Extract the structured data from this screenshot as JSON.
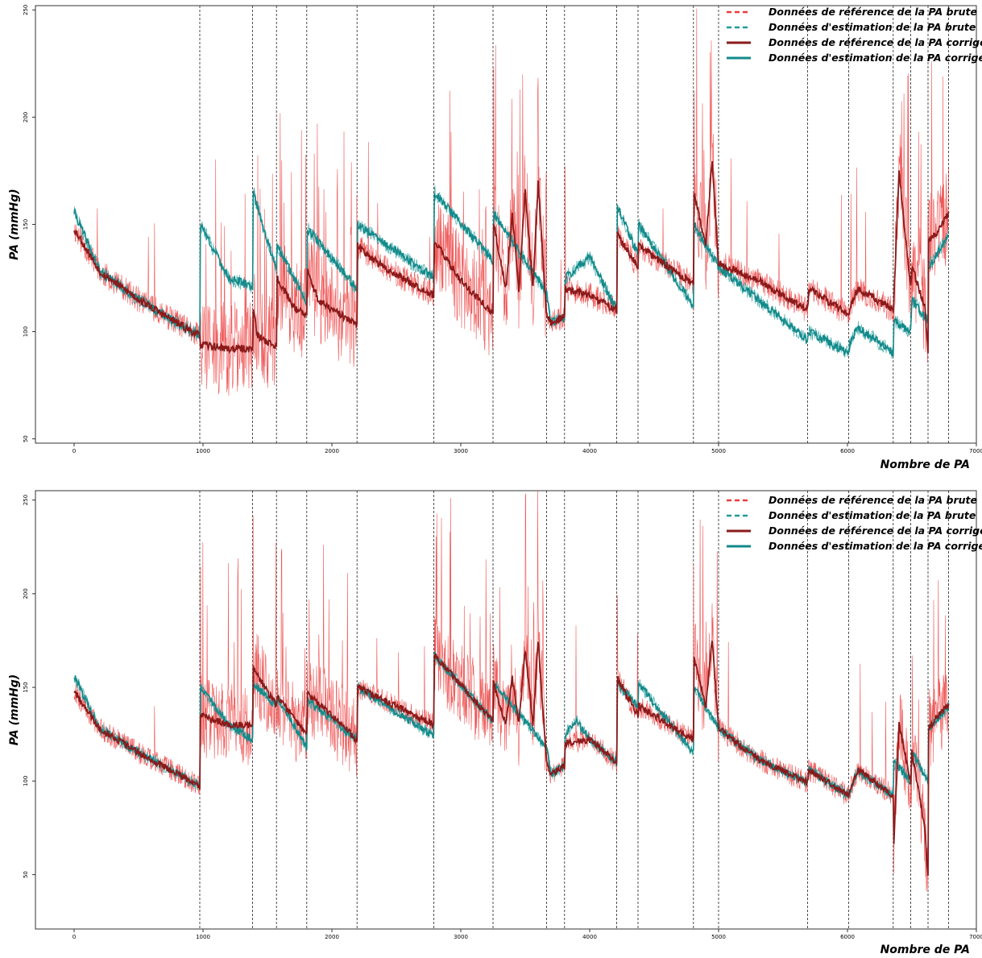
{
  "colors": {
    "ref_raw": "#ec3a3a",
    "est_raw": "#1f9a9a",
    "ref_corr": "#8b1a1a",
    "est_corr": "#138a8a"
  },
  "legend": {
    "ref_raw": "Données de référence de la PA brute",
    "est_raw": "Données d'estimation de la PA brute",
    "ref_corr": "Données de référence de la PA corrigé",
    "est_corr": "Données d'estimation de la PA corrigé"
  },
  "chart_data": [
    {
      "type": "line",
      "xlabel": "Nombre de PA",
      "ylabel": "PA (mmHg)",
      "xlim": [
        -300,
        7000
      ],
      "ylim": [
        48,
        252
      ],
      "x_ticks": [
        0,
        1000,
        2000,
        3000,
        4000,
        5000,
        6000,
        7000
      ],
      "y_ticks": [
        50,
        100,
        150,
        200,
        250
      ],
      "vlines": [
        975,
        1385,
        1570,
        1805,
        2195,
        2790,
        3250,
        3665,
        3805,
        4210,
        4375,
        4805,
        5000,
        5690,
        6010,
        6355,
        6490,
        6625,
        6785
      ],
      "legend_position": "top-right",
      "series": [
        {
          "key": "ref_corr",
          "points": [
            [
              0,
              148
            ],
            [
              200,
              128
            ],
            [
              500,
              115
            ],
            [
              800,
              104
            ],
            [
              975,
              98
            ],
            [
              980,
              94
            ],
            [
              1200,
              92
            ],
            [
              1385,
              92
            ],
            [
              1390,
              112
            ],
            [
              1420,
              98
            ],
            [
              1570,
              93
            ],
            [
              1575,
              125
            ],
            [
              1700,
              112
            ],
            [
              1805,
              107
            ],
            [
              1810,
              128
            ],
            [
              1900,
              114
            ],
            [
              2195,
              103
            ],
            [
              2200,
              140
            ],
            [
              2400,
              130
            ],
            [
              2790,
              117
            ],
            [
              2795,
              142
            ],
            [
              3000,
              124
            ],
            [
              3250,
              108
            ],
            [
              3255,
              150
            ],
            [
              3350,
              120
            ],
            [
              3400,
              155
            ],
            [
              3450,
              120
            ],
            [
              3500,
              165
            ],
            [
              3560,
              120
            ],
            [
              3600,
              170
            ],
            [
              3665,
              108
            ],
            [
              3700,
              104
            ],
            [
              3805,
              107
            ],
            [
              3810,
              120
            ],
            [
              4000,
              117
            ],
            [
              4210,
              110
            ],
            [
              4215,
              145
            ],
            [
              4375,
              130
            ],
            [
              4380,
              140
            ],
            [
              4805,
              122
            ],
            [
              4810,
              165
            ],
            [
              4900,
              140
            ],
            [
              4950,
              180
            ],
            [
              5000,
              132
            ],
            [
              5300,
              124
            ],
            [
              5690,
              110
            ],
            [
              5700,
              120
            ],
            [
              6010,
              108
            ],
            [
              6020,
              112
            ],
            [
              6080,
              120
            ],
            [
              6355,
              110
            ],
            [
              6360,
              115
            ],
            [
              6400,
              175
            ],
            [
              6490,
              120
            ],
            [
              6500,
              130
            ],
            [
              6600,
              112
            ],
            [
              6625,
              90
            ],
            [
              6630,
              142
            ],
            [
              6700,
              146
            ],
            [
              6785,
              155
            ]
          ]
        },
        {
          "key": "est_corr",
          "points": [
            [
              0,
              156
            ],
            [
              200,
              128
            ],
            [
              500,
              115
            ],
            [
              800,
              104
            ],
            [
              975,
              98
            ],
            [
              980,
              150
            ],
            [
              1200,
              125
            ],
            [
              1385,
              121
            ],
            [
              1390,
              165
            ],
            [
              1570,
              128
            ],
            [
              1575,
              140
            ],
            [
              1805,
              114
            ],
            [
              1810,
              148
            ],
            [
              2195,
              120
            ],
            [
              2200,
              150
            ],
            [
              2790,
              125
            ],
            [
              2795,
              165
            ],
            [
              3250,
              133
            ],
            [
              3255,
              155
            ],
            [
              3665,
              118
            ],
            [
              3700,
              104
            ],
            [
              3805,
              107
            ],
            [
              3810,
              125
            ],
            [
              3900,
              130
            ],
            [
              4000,
              135
            ],
            [
              4210,
              110
            ],
            [
              4215,
              158
            ],
            [
              4375,
              136
            ],
            [
              4380,
              150
            ],
            [
              4805,
              112
            ],
            [
              4810,
              150
            ],
            [
              5000,
              130
            ],
            [
              5690,
              96
            ],
            [
              5700,
              100
            ],
            [
              6010,
              90
            ],
            [
              6020,
              95
            ],
            [
              6080,
              102
            ],
            [
              6355,
              90
            ],
            [
              6360,
              105
            ],
            [
              6490,
              100
            ],
            [
              6500,
              115
            ],
            [
              6625,
              105
            ],
            [
              6630,
              130
            ],
            [
              6785,
              145
            ]
          ]
        }
      ]
    },
    {
      "type": "line",
      "xlabel": "Nombre de PA",
      "ylabel": "PA (mmHg)",
      "xlim": [
        -300,
        7000
      ],
      "ylim": [
        21,
        255
      ],
      "x_ticks": [
        0,
        1000,
        2000,
        3000,
        4000,
        5000,
        6000,
        7000
      ],
      "y_ticks": [
        50,
        100,
        150,
        200,
        250
      ],
      "vlines": [
        975,
        1385,
        1570,
        1805,
        2195,
        2790,
        3250,
        3665,
        3805,
        4210,
        4375,
        4805,
        5000,
        5690,
        6010,
        6355,
        6490,
        6625,
        6785
      ],
      "legend_position": "top-right",
      "series": [
        {
          "key": "ref_corr",
          "points": [
            [
              0,
              148
            ],
            [
              200,
              128
            ],
            [
              500,
              115
            ],
            [
              800,
              104
            ],
            [
              975,
              97
            ],
            [
              980,
              135
            ],
            [
              1200,
              130
            ],
            [
              1385,
              130
            ],
            [
              1390,
              160
            ],
            [
              1570,
              140
            ],
            [
              1575,
              145
            ],
            [
              1805,
              125
            ],
            [
              1810,
              147
            ],
            [
              2195,
              122
            ],
            [
              2200,
              150
            ],
            [
              2790,
              130
            ],
            [
              2795,
              167
            ],
            [
              3250,
              132
            ],
            [
              3255,
              152
            ],
            [
              3350,
              130
            ],
            [
              3400,
              155
            ],
            [
              3450,
              130
            ],
            [
              3500,
              170
            ],
            [
              3560,
              130
            ],
            [
              3600,
              175
            ],
            [
              3665,
              110
            ],
            [
              3700,
              104
            ],
            [
              3805,
              108
            ],
            [
              3810,
              120
            ],
            [
              4000,
              122
            ],
            [
              4210,
              110
            ],
            [
              4215,
              155
            ],
            [
              4375,
              135
            ],
            [
              4380,
              140
            ],
            [
              4805,
              122
            ],
            [
              4810,
              165
            ],
            [
              4900,
              140
            ],
            [
              4950,
              175
            ],
            [
              5000,
              128
            ],
            [
              5300,
              112
            ],
            [
              5690,
              99
            ],
            [
              5700,
              106
            ],
            [
              6010,
              92
            ],
            [
              6020,
              95
            ],
            [
              6080,
              106
            ],
            [
              6355,
              92
            ],
            [
              6360,
              68
            ],
            [
              6400,
              130
            ],
            [
              6490,
              100
            ],
            [
              6500,
              115
            ],
            [
              6600,
              75
            ],
            [
              6625,
              48
            ],
            [
              6630,
              128
            ],
            [
              6700,
              135
            ],
            [
              6785,
              140
            ]
          ]
        },
        {
          "key": "est_corr",
          "points": [
            [
              0,
              156
            ],
            [
              200,
              128
            ],
            [
              500,
              115
            ],
            [
              800,
              104
            ],
            [
              975,
              97
            ],
            [
              980,
              150
            ],
            [
              1200,
              130
            ],
            [
              1385,
              122
            ],
            [
              1390,
              152
            ],
            [
              1570,
              140
            ],
            [
              1575,
              145
            ],
            [
              1805,
              118
            ],
            [
              1810,
              143
            ],
            [
              2195,
              122
            ],
            [
              2200,
              150
            ],
            [
              2790,
              124
            ],
            [
              2795,
              167
            ],
            [
              3250,
              132
            ],
            [
              3255,
              152
            ],
            [
              3665,
              118
            ],
            [
              3700,
              104
            ],
            [
              3805,
              108
            ],
            [
              3810,
              125
            ],
            [
              3900,
              132
            ],
            [
              4000,
              122
            ],
            [
              4210,
              110
            ],
            [
              4215,
              152
            ],
            [
              4375,
              140
            ],
            [
              4380,
              152
            ],
            [
              4805,
              115
            ],
            [
              4810,
              150
            ],
            [
              5000,
              128
            ],
            [
              5300,
              112
            ],
            [
              5690,
              99
            ],
            [
              5700,
              106
            ],
            [
              6010,
              92
            ],
            [
              6020,
              95
            ],
            [
              6080,
              106
            ],
            [
              6355,
              92
            ],
            [
              6360,
              110
            ],
            [
              6490,
              100
            ],
            [
              6500,
              115
            ],
            [
              6625,
              100
            ],
            [
              6630,
              128
            ],
            [
              6785,
              140
            ]
          ]
        }
      ]
    }
  ]
}
